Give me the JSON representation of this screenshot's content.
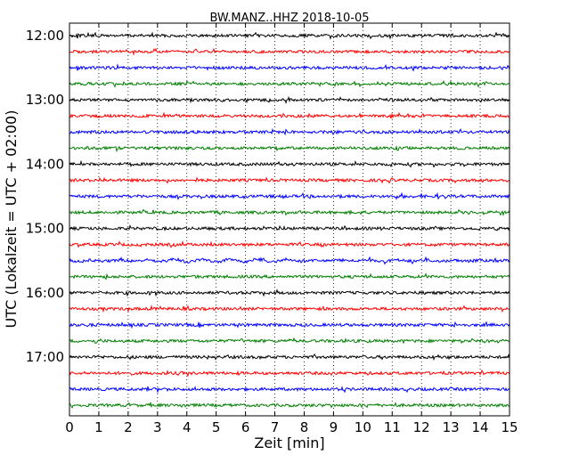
{
  "chart_data": {
    "type": "line",
    "title": "BW.MANZ..HHZ 2018-10-05",
    "xlabel": "Zeit  [min]",
    "ylabel": "UTC (Lokalzeit = UTC + 02:00)",
    "xlim": [
      0,
      15
    ],
    "x_ticks": [
      "0",
      "1",
      "2",
      "3",
      "4",
      "5",
      "6",
      "7",
      "8",
      "9",
      "10",
      "11",
      "12",
      "13",
      "14",
      "15"
    ],
    "y_ticks": [
      "12:00",
      "13:00",
      "14:00",
      "15:00",
      "16:00",
      "17:00"
    ],
    "grid": "vertical dotted",
    "trace_interval_min": 15,
    "colors": [
      "#000000",
      "#ff0000",
      "#0000ff",
      "#007f00"
    ],
    "series": [
      {
        "start": "12:00",
        "color": "#000000"
      },
      {
        "start": "12:15",
        "color": "#ff0000"
      },
      {
        "start": "12:30",
        "color": "#0000ff"
      },
      {
        "start": "12:45",
        "color": "#007f00"
      },
      {
        "start": "13:00",
        "color": "#000000"
      },
      {
        "start": "13:15",
        "color": "#ff0000"
      },
      {
        "start": "13:30",
        "color": "#0000ff"
      },
      {
        "start": "13:45",
        "color": "#007f00"
      },
      {
        "start": "14:00",
        "color": "#000000"
      },
      {
        "start": "14:15",
        "color": "#ff0000"
      },
      {
        "start": "14:30",
        "color": "#0000ff"
      },
      {
        "start": "14:45",
        "color": "#007f00"
      },
      {
        "start": "15:00",
        "color": "#000000"
      },
      {
        "start": "15:15",
        "color": "#ff0000"
      },
      {
        "start": "15:30",
        "color": "#0000ff"
      },
      {
        "start": "15:45",
        "color": "#007f00"
      },
      {
        "start": "16:00",
        "color": "#000000"
      },
      {
        "start": "16:15",
        "color": "#ff0000"
      },
      {
        "start": "16:30",
        "color": "#0000ff"
      },
      {
        "start": "16:45",
        "color": "#007f00"
      },
      {
        "start": "17:00",
        "color": "#000000"
      },
      {
        "start": "17:15",
        "color": "#ff0000"
      },
      {
        "start": "17:30",
        "color": "#0000ff"
      },
      {
        "start": "17:45",
        "color": "#007f00"
      }
    ]
  }
}
